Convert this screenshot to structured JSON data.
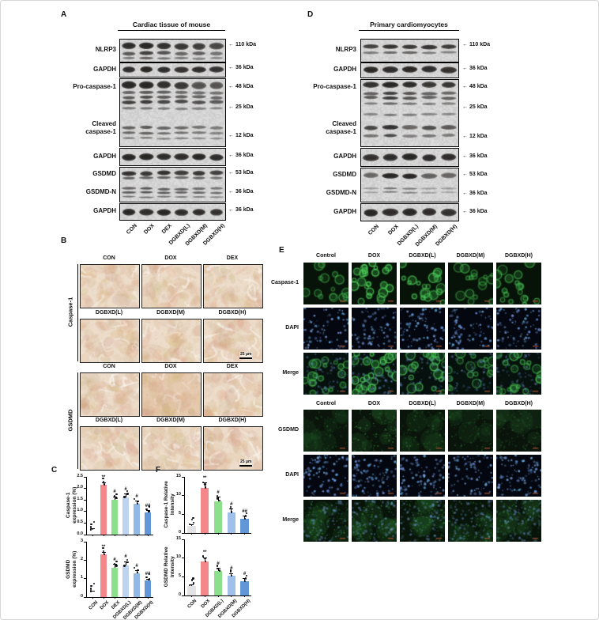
{
  "panel_a": {
    "label": "A",
    "title": "Cardiac tissue of mouse",
    "labels": {
      "nlrp3": "NLRP3",
      "gapdh1": "GAPDH",
      "pro_caspase": "Pro-caspase-1",
      "cleaved1": "Cleaved",
      "cleaved2": "caspase-1",
      "gapdh2": "GAPDH",
      "gsdmd": "GSDMD",
      "gsdmd_n": "GSDMD-N",
      "gapdh3": "GAPDH"
    },
    "markers": [
      "110 kDa",
      "36 kDa",
      "48 kDa",
      "25 kDa",
      "12 kDa",
      "36 kDa",
      "53 kDa",
      "36 kDa",
      "36 kDa"
    ],
    "lanes": [
      "CON",
      "DOX",
      "DEX",
      "DGBXD(L)",
      "DGBXD(M)",
      "DGBXD(H)"
    ]
  },
  "panel_d": {
    "label": "D",
    "title": "Primary cardiomyocytes",
    "labels": {
      "nlrp3": "NLRP3",
      "gapdh1": "GAPDH",
      "pro_caspase": "Pro-caspase-1",
      "cleaved1": "Cleaved",
      "cleaved2": "caspase-1",
      "gapdh2": "GAPDH",
      "gsdmd": "GSDMD",
      "gsdmd_n": "GSDMD-N",
      "gapdh3": "GAPDH"
    },
    "markers": [
      "110 kDa",
      "36 kDa",
      "48 kDa",
      "25 kDa",
      "12 kDa",
      "36 kDa",
      "53 kDa",
      "36 kDa",
      "36 kDa"
    ],
    "lanes": [
      "CON",
      "DOX",
      "DGBXD(L)",
      "DGBXD(M)",
      "DGBXD(H)"
    ]
  },
  "panel_b": {
    "label": "B",
    "group1_label": "Caspase-1",
    "group2_label": "GSDMD",
    "header_row1": [
      "CON",
      "DOX",
      "DEX"
    ],
    "header_row2": [
      "DGBXD(L)",
      "DGBXD(M)",
      "DGBXD(H)"
    ],
    "scale_bar": "25 μm"
  },
  "panel_e": {
    "label": "E",
    "columns": [
      "Control",
      "DOX",
      "DGBXD(L)",
      "DGBXD(M)",
      "DGBXD(H)"
    ],
    "block1_rows": [
      "Caspase-1",
      "DAPI",
      "Merge"
    ],
    "block2_rows": [
      "GSDMD",
      "DAPI",
      "Merge"
    ]
  },
  "panel_c": {
    "label": "C"
  },
  "panel_f": {
    "label": "F"
  },
  "chart_data": [
    {
      "type": "bar",
      "ylabel": "Caspase-1 expression (%)",
      "ylabel_lines": [
        "Caspase-1",
        "expression (%)"
      ],
      "categories": [
        "CON",
        "DOX",
        "DEX",
        "DGBXD(L)",
        "DGBXD(M)",
        "DGBXD(H)"
      ],
      "values": [
        0.2,
        2.15,
        1.5,
        1.62,
        1.32,
        0.95
      ],
      "errors": [
        0.06,
        0.12,
        0.15,
        0.15,
        0.15,
        0.1
      ],
      "sig": [
        "",
        "**",
        "#",
        "#",
        "#",
        "##"
      ],
      "bar_colors": [
        "#fbfbfb",
        "#f4878a",
        "#8ce08c",
        "#bdd3ef",
        "#92b8e6",
        "#6197d6"
      ],
      "ylim": [
        0,
        2.5
      ],
      "yticks": [
        0,
        0.5,
        1,
        1.5,
        2,
        2.5
      ],
      "ytick_labels": [
        "0.0",
        "0.5",
        "1.0",
        "1.5",
        "2.0",
        "2.5"
      ],
      "show_xlabels": false
    },
    {
      "type": "bar",
      "ylabel": "GSDMD expression (%)",
      "ylabel_lines": [
        "GSDMD",
        "expression (%)"
      ],
      "categories": [
        "CON",
        "DOX",
        "DEX",
        "DGBXD(L)",
        "DGBXD(M)",
        "DGBXD(H)"
      ],
      "values": [
        0.3,
        2.3,
        1.6,
        1.7,
        1.3,
        0.9
      ],
      "errors": [
        0.06,
        0.15,
        0.2,
        0.25,
        0.15,
        0.1
      ],
      "sig": [
        "",
        "**",
        "#",
        "#",
        "#",
        "##"
      ],
      "bar_colors": [
        "#fbfbfb",
        "#f4878a",
        "#8ce08c",
        "#bdd3ef",
        "#92b8e6",
        "#6197d6"
      ],
      "ylim": [
        0,
        3
      ],
      "yticks": [
        0,
        1,
        2,
        3
      ],
      "ytick_labels": [
        "0",
        "1",
        "2",
        "3"
      ],
      "show_xlabels": true
    },
    {
      "type": "bar",
      "ylabel": "Caspase-1 Relative Intensity",
      "ylabel_lines": [
        "Caspase-1 Relative",
        "Intensity"
      ],
      "categories": [
        "CON",
        "DOX",
        "DGBXD(L)",
        "DGBXD(M)",
        "DGBXD(H)"
      ],
      "values": [
        2,
        12,
        8.5,
        5.5,
        3.8
      ],
      "errors": [
        0.4,
        1.5,
        1.2,
        1.0,
        0.8
      ],
      "sig": [
        "",
        "**",
        "#",
        "#",
        "##"
      ],
      "bar_colors": [
        "#e3e3e3",
        "#f4878a",
        "#8ce08c",
        "#9fc0e8",
        "#6197d6"
      ],
      "ylim": [
        0,
        15
      ],
      "yticks": [
        0,
        5,
        10,
        15
      ],
      "ytick_labels": [
        "0",
        "5",
        "10",
        "15"
      ],
      "show_xlabels": false
    },
    {
      "type": "bar",
      "ylabel": "GSDMD Relative Intensity",
      "ylabel_lines": [
        "GSDMD Relative",
        "Intensity"
      ],
      "categories": [
        "CON",
        "DOX",
        "DGBXD(L)",
        "DGBXD(M)",
        "DGBXD(H)"
      ],
      "values": [
        2.5,
        9,
        6.5,
        5.2,
        3.8
      ],
      "errors": [
        0.4,
        1.2,
        0.8,
        0.8,
        0.8
      ],
      "sig": [
        "",
        "**",
        "#",
        "#",
        "#"
      ],
      "bar_colors": [
        "#e3e3e3",
        "#f4878a",
        "#8ce08c",
        "#9fc0e8",
        "#6197d6"
      ],
      "ylim": [
        0,
        15
      ],
      "yticks": [
        0,
        5,
        10,
        15
      ],
      "ytick_labels": [
        "0",
        "5",
        "10",
        "15"
      ],
      "show_xlabels": true
    }
  ]
}
